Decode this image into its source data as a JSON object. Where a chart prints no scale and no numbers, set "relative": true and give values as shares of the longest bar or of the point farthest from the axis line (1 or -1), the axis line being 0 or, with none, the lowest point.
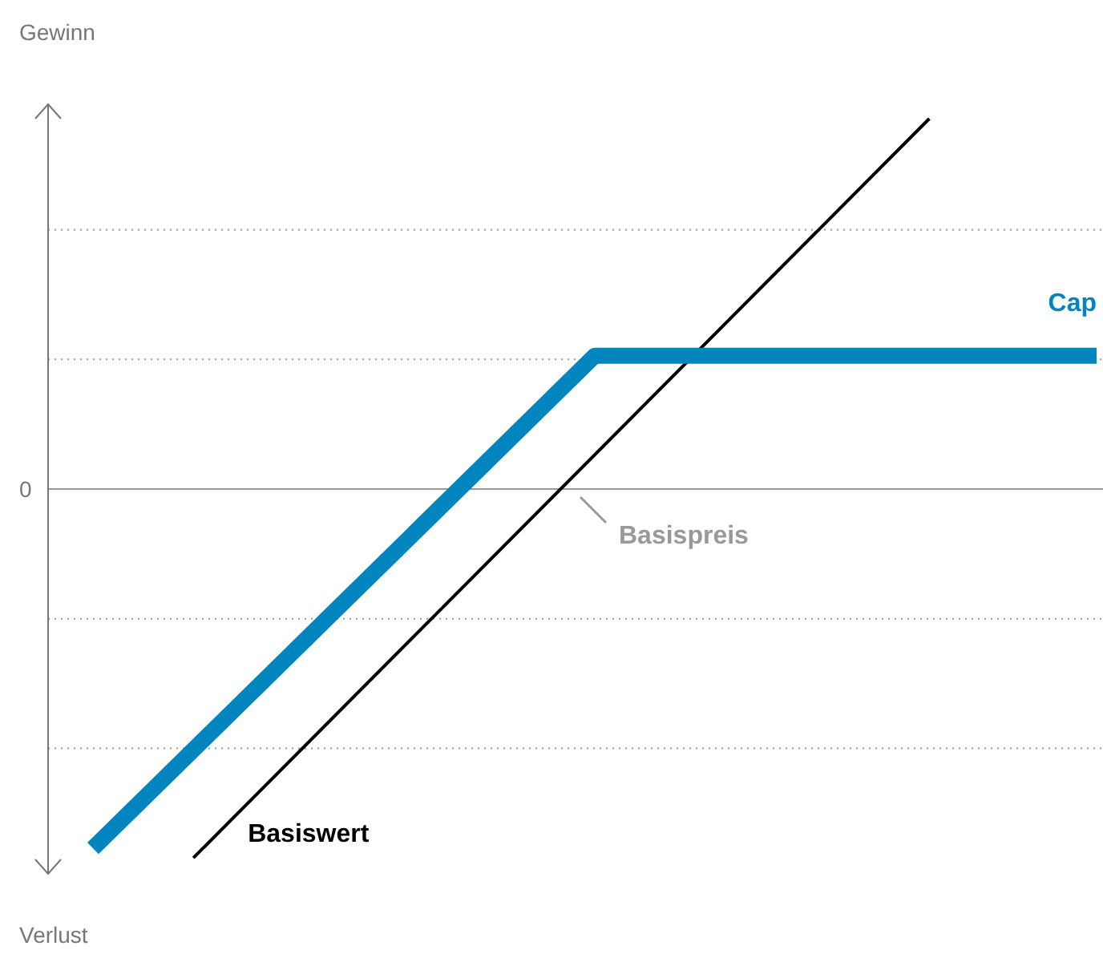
{
  "chart_data": {
    "type": "line",
    "relative": true,
    "categories": [
      null,
      null,
      null,
      null,
      null,
      null,
      null,
      null,
      null,
      null,
      null,
      null,
      null,
      null,
      null,
      null,
      null,
      null,
      null,
      null,
      null,
      null,
      null,
      null,
      null,
      null,
      null,
      null,
      null,
      null,
      null
    ],
    "series": [
      {
        "name": "Basiswert",
        "color": "#000000",
        "values": [
          null,
          null,
          null,
          -0.996,
          null,
          null,
          null,
          null,
          null,
          null,
          null,
          null,
          null,
          null,
          null,
          null,
          null,
          null,
          null,
          null,
          null,
          null,
          null,
          null,
          null,
          1,
          null,
          null,
          null,
          null,
          null
        ]
      },
      {
        "name": "Cap",
        "color": "#0085be",
        "values": [
          -0.97,
          null,
          null,
          null,
          null,
          null,
          null,
          null,
          null,
          null,
          null,
          null,
          null,
          null,
          null,
          0.36,
          null,
          null,
          null,
          null,
          null,
          null,
          null,
          null,
          null,
          null,
          null,
          null,
          null,
          null,
          0.36
        ]
      }
    ],
    "ref_lines": [
      {
        "axis": "y",
        "value": 0,
        "label": "0",
        "color": "#999999",
        "line_style": "solid"
      },
      {
        "axis": "y",
        "value": 0.7,
        "color": "#999999",
        "line_style": "dotted"
      },
      {
        "axis": "y",
        "value": 0.35,
        "color": "#999999",
        "line_style": "dotted"
      },
      {
        "axis": "y",
        "value": -0.35,
        "color": "#999999",
        "line_style": "dotted"
      },
      {
        "axis": "y",
        "value": -0.7,
        "color": "#999999",
        "line_style": "dotted"
      }
    ],
    "annotations": [
      "Gewinn",
      "Verlust",
      "Basispreis"
    ]
  }
}
